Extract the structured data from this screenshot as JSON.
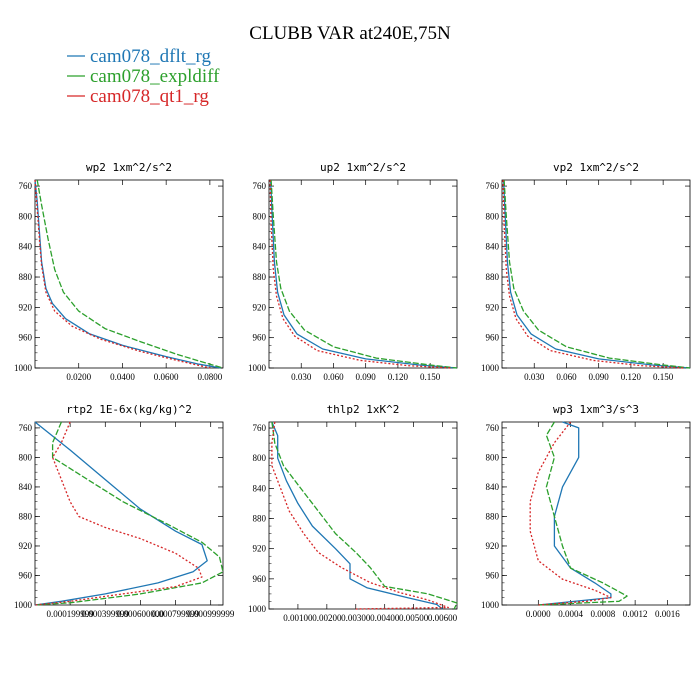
{
  "figure": {
    "title": "CLUBB VAR at240E,75N"
  },
  "legend": [
    {
      "label": "cam078_dflt_rg",
      "color": "#1f77b4"
    },
    {
      "label": "cam078_expldiff",
      "color": "#2ca02c"
    },
    {
      "label": "cam078_qt1_rg",
      "color": "#d62728"
    }
  ],
  "chart_data": [
    {
      "type": "line",
      "title": "wp2   1xm^2/s^2",
      "xlim": [
        0,
        0.086
      ],
      "ylim": [
        1000,
        752
      ],
      "xticks": [
        0.02,
        0.04,
        0.06,
        0.08
      ],
      "xtick_labels": [
        "0.0200",
        "0.0400",
        "0.0600",
        "0.0800"
      ],
      "yticks": [
        760,
        800,
        840,
        880,
        920,
        960,
        1000
      ],
      "series": [
        {
          "color": "#1f77b4",
          "dash": "",
          "points": [
            [
              0.0,
              752
            ],
            [
              0.001,
              780
            ],
            [
              0.002,
              820
            ],
            [
              0.003,
              860
            ],
            [
              0.005,
              895
            ],
            [
              0.008,
              915
            ],
            [
              0.014,
              935
            ],
            [
              0.025,
              955
            ],
            [
              0.04,
              970
            ],
            [
              0.06,
              985
            ],
            [
              0.075,
              995
            ],
            [
              0.085,
              1000
            ]
          ]
        },
        {
          "color": "#2ca02c",
          "dash": "6,2",
          "points": [
            [
              0.001,
              752
            ],
            [
              0.003,
              785
            ],
            [
              0.006,
              830
            ],
            [
              0.009,
              870
            ],
            [
              0.013,
              900
            ],
            [
              0.02,
              925
            ],
            [
              0.032,
              948
            ],
            [
              0.048,
              965
            ],
            [
              0.065,
              982
            ],
            [
              0.08,
              995
            ],
            [
              0.086,
              1000
            ]
          ]
        },
        {
          "color": "#d62728",
          "dash": "2,2",
          "points": [
            [
              0.0,
              752
            ],
            [
              0.001,
              790
            ],
            [
              0.002,
              830
            ],
            [
              0.003,
              865
            ],
            [
              0.005,
              900
            ],
            [
              0.009,
              925
            ],
            [
              0.017,
              945
            ],
            [
              0.03,
              962
            ],
            [
              0.048,
              978
            ],
            [
              0.065,
              990
            ],
            [
              0.08,
              1000
            ]
          ]
        }
      ]
    },
    {
      "type": "line",
      "title": "up2   1xm^2/s^2",
      "xlim": [
        0,
        0.175
      ],
      "ylim": [
        1000,
        752
      ],
      "xticks": [
        0.03,
        0.06,
        0.09,
        0.12,
        0.15
      ],
      "xtick_labels": [
        "0.030",
        "0.060",
        "0.090",
        "0.120",
        "0.150"
      ],
      "yticks": [
        760,
        800,
        840,
        880,
        920,
        960,
        1000
      ],
      "series": [
        {
          "color": "#1f77b4",
          "dash": "",
          "points": [
            [
              0.0015,
              752
            ],
            [
              0.003,
              800
            ],
            [
              0.005,
              860
            ],
            [
              0.008,
              900
            ],
            [
              0.014,
              930
            ],
            [
              0.026,
              955
            ],
            [
              0.05,
              975
            ],
            [
              0.09,
              988
            ],
            [
              0.14,
              996
            ],
            [
              0.175,
              1000
            ]
          ]
        },
        {
          "color": "#2ca02c",
          "dash": "6,2",
          "points": [
            [
              0.002,
              752
            ],
            [
              0.004,
              800
            ],
            [
              0.007,
              860
            ],
            [
              0.011,
              895
            ],
            [
              0.019,
              925
            ],
            [
              0.033,
              950
            ],
            [
              0.06,
              972
            ],
            [
              0.1,
              987
            ],
            [
              0.15,
              996
            ],
            [
              0.175,
              1000
            ]
          ]
        },
        {
          "color": "#d62728",
          "dash": "2,2",
          "points": [
            [
              0.001,
              752
            ],
            [
              0.002,
              810
            ],
            [
              0.004,
              870
            ],
            [
              0.007,
              905
            ],
            [
              0.013,
              935
            ],
            [
              0.024,
              958
            ],
            [
              0.045,
              977
            ],
            [
              0.085,
              990
            ],
            [
              0.13,
              997
            ],
            [
              0.17,
              1000
            ]
          ]
        }
      ]
    },
    {
      "type": "line",
      "title": "vp2   1xm^2/s^2",
      "xlim": [
        0,
        0.175
      ],
      "ylim": [
        1000,
        752
      ],
      "xticks": [
        0.03,
        0.06,
        0.09,
        0.12,
        0.15
      ],
      "xtick_labels": [
        "0.030",
        "0.060",
        "0.090",
        "0.120",
        "0.150"
      ],
      "yticks": [
        760,
        800,
        840,
        880,
        920,
        960,
        1000
      ],
      "series": [
        {
          "color": "#1f77b4",
          "dash": "",
          "points": [
            [
              0.0015,
              752
            ],
            [
              0.003,
              800
            ],
            [
              0.005,
              860
            ],
            [
              0.008,
              900
            ],
            [
              0.014,
              930
            ],
            [
              0.027,
              955
            ],
            [
              0.05,
              975
            ],
            [
              0.09,
              988
            ],
            [
              0.14,
              996
            ],
            [
              0.175,
              1000
            ]
          ]
        },
        {
          "color": "#2ca02c",
          "dash": "6,2",
          "points": [
            [
              0.002,
              752
            ],
            [
              0.004,
              800
            ],
            [
              0.007,
              860
            ],
            [
              0.011,
              895
            ],
            [
              0.02,
              925
            ],
            [
              0.034,
              950
            ],
            [
              0.06,
              972
            ],
            [
              0.1,
              987
            ],
            [
              0.15,
              996
            ],
            [
              0.175,
              1000
            ]
          ]
        },
        {
          "color": "#d62728",
          "dash": "2,2",
          "points": [
            [
              0.001,
              752
            ],
            [
              0.002,
              810
            ],
            [
              0.004,
              870
            ],
            [
              0.007,
              905
            ],
            [
              0.013,
              935
            ],
            [
              0.024,
              958
            ],
            [
              0.045,
              977
            ],
            [
              0.085,
              990
            ],
            [
              0.13,
              997
            ],
            [
              0.17,
              1000
            ]
          ]
        }
      ]
    },
    {
      "type": "line",
      "title": "rtp2   1E-6x(kg/kg)^2",
      "xlim": [
        0,
        0.00107
      ],
      "ylim": [
        1000,
        752
      ],
      "xticks": [
        0.0002,
        0.0004,
        0.0006,
        0.0008,
        0.001
      ],
      "xtick_labels": [
        "0.000199999",
        "0.000399999",
        "0.000600000",
        "0.000799999",
        "0.000999999"
      ],
      "yticks": [
        760,
        800,
        840,
        880,
        920,
        960,
        1000
      ],
      "series": [
        {
          "color": "#1f77b4",
          "dash": "",
          "points": [
            [
              0.0,
              752
            ],
            [
              0.0002,
              790
            ],
            [
              0.0004,
              830
            ],
            [
              0.0006,
              870
            ],
            [
              0.0008,
              900
            ],
            [
              0.00095,
              918
            ],
            [
              0.00098,
              940
            ],
            [
              0.0009,
              955
            ],
            [
              0.0007,
              970
            ],
            [
              0.0004,
              985
            ],
            [
              0.00015,
              995
            ],
            [
              0.0,
              1000
            ]
          ]
        },
        {
          "color": "#2ca02c",
          "dash": "6,2",
          "points": [
            [
              0.00015,
              752
            ],
            [
              0.0001,
              780
            ],
            [
              0.0001,
              800
            ],
            [
              0.0003,
              830
            ],
            [
              0.0005,
              860
            ],
            [
              0.00075,
              890
            ],
            [
              0.00095,
              915
            ],
            [
              0.00105,
              935
            ],
            [
              0.00107,
              955
            ],
            [
              0.00095,
              970
            ],
            [
              0.0006,
              985
            ],
            [
              0.0002,
              997
            ],
            [
              0.0,
              1000
            ]
          ]
        },
        {
          "color": "#d62728",
          "dash": "2,2",
          "points": [
            [
              0.0002,
              752
            ],
            [
              0.00015,
              780
            ],
            [
              0.0001,
              800
            ],
            [
              0.00015,
              830
            ],
            [
              0.0002,
              860
            ],
            [
              0.00025,
              880
            ],
            [
              0.0004,
              895
            ],
            [
              0.0006,
              910
            ],
            [
              0.0008,
              930
            ],
            [
              0.00093,
              950
            ],
            [
              0.00095,
              962
            ],
            [
              0.0008,
              975
            ],
            [
              0.0005,
              985
            ],
            [
              0.0002,
              995
            ],
            [
              0.0,
              1000
            ]
          ]
        }
      ]
    },
    {
      "type": "line",
      "title": "thlp2   1xK^2",
      "xlim": [
        0,
        0.0065
      ],
      "ylim": [
        1000,
        752
      ],
      "xticks": [
        0.001,
        0.002,
        0.003,
        0.004,
        0.005,
        0.006
      ],
      "xtick_labels": [
        "0.00100",
        "0.00200",
        "0.00300",
        "0.00400",
        "0.00500",
        "0.00600"
      ],
      "yticks": [
        760,
        800,
        840,
        880,
        920,
        960,
        1000
      ],
      "series": [
        {
          "color": "#1f77b4",
          "dash": "",
          "points": [
            [
              0.0001,
              752
            ],
            [
              0.0003,
              770
            ],
            [
              0.0003,
              800
            ],
            [
              0.0006,
              830
            ],
            [
              0.001,
              860
            ],
            [
              0.0015,
              890
            ],
            [
              0.0023,
              920
            ],
            [
              0.0028,
              940
            ],
            [
              0.0028,
              960
            ],
            [
              0.0034,
              972
            ],
            [
              0.0048,
              985
            ],
            [
              0.0058,
              994
            ],
            [
              0.006,
              1000
            ]
          ]
        },
        {
          "color": "#2ca02c",
          "dash": "6,2",
          "points": [
            [
              0.0001,
              752
            ],
            [
              0.0002,
              780
            ],
            [
              0.0005,
              810
            ],
            [
              0.0011,
              840
            ],
            [
              0.0017,
              870
            ],
            [
              0.0023,
              900
            ],
            [
              0.003,
              925
            ],
            [
              0.0035,
              945
            ],
            [
              0.004,
              970
            ],
            [
              0.0055,
              980
            ],
            [
              0.0065,
              992
            ],
            [
              0.0064,
              1000
            ]
          ]
        },
        {
          "color": "#d62728",
          "dash": "2,2",
          "points": [
            [
              0.0002,
              752
            ],
            [
              0.0001,
              780
            ],
            [
              0.0001,
              810
            ],
            [
              0.0004,
              840
            ],
            [
              0.0007,
              870
            ],
            [
              0.0012,
              900
            ],
            [
              0.0017,
              925
            ],
            [
              0.0025,
              945
            ],
            [
              0.0035,
              965
            ],
            [
              0.0045,
              978
            ],
            [
              0.0055,
              988
            ],
            [
              0.0062,
              998
            ],
            [
              0.003,
              1000
            ]
          ]
        }
      ]
    },
    {
      "type": "line",
      "title": "wp3   1xm^3/s^3",
      "xlim": [
        -0.00045,
        0.00188
      ],
      "ylim": [
        1000,
        752
      ],
      "xticks": [
        0.0,
        0.0004,
        0.0008,
        0.0012,
        0.0016
      ],
      "xtick_labels": [
        "0.0000",
        "0.0004",
        "0.0008",
        "0.0012",
        "0.0016"
      ],
      "yticks": [
        760,
        800,
        840,
        880,
        920,
        960,
        1000
      ],
      "series": [
        {
          "color": "#1f77b4",
          "dash": "",
          "points": [
            [
              0.0003,
              752
            ],
            [
              0.0005,
              760
            ],
            [
              0.0005,
              800
            ],
            [
              0.0003,
              840
            ],
            [
              0.0002,
              880
            ],
            [
              0.0002,
              920
            ],
            [
              0.0004,
              950
            ],
            [
              0.0007,
              970
            ],
            [
              0.0009,
              985
            ],
            [
              0.0009,
              990
            ],
            [
              0.0,
              1000
            ]
          ]
        },
        {
          "color": "#2ca02c",
          "dash": "6,2",
          "points": [
            [
              0.0002,
              752
            ],
            [
              0.0001,
              770
            ],
            [
              0.0002,
              800
            ],
            [
              0.0001,
              840
            ],
            [
              0.0002,
              880
            ],
            [
              0.0003,
              920
            ],
            [
              0.0004,
              950
            ],
            [
              0.0008,
              970
            ],
            [
              0.0011,
              988
            ],
            [
              0.001,
              995
            ],
            [
              0.0,
              1000
            ]
          ]
        },
        {
          "color": "#d62728",
          "dash": "2,2",
          "points": [
            [
              0.0004,
              752
            ],
            [
              0.0002,
              780
            ],
            [
              0.0,
              820
            ],
            [
              -0.0001,
              860
            ],
            [
              -0.0001,
              900
            ],
            [
              0.0,
              940
            ],
            [
              0.0003,
              965
            ],
            [
              0.0007,
              980
            ],
            [
              0.0009,
              990
            ],
            [
              0.0006,
              995
            ],
            [
              0.0,
              1000
            ]
          ]
        }
      ]
    }
  ]
}
